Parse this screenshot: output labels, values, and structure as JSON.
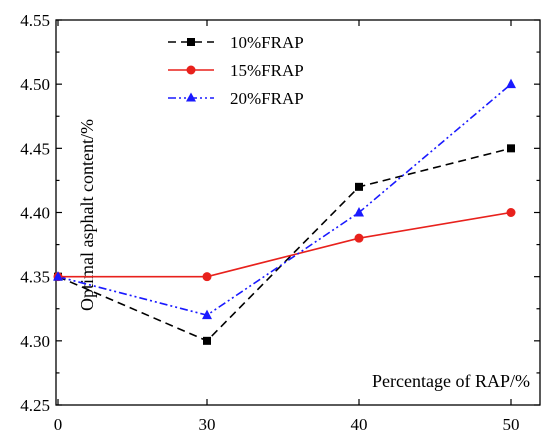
{
  "chart_data": {
    "type": "line",
    "title": "",
    "xlabel": "Percentage of RAP/%",
    "ylabel": "Optimal asphalt content/%",
    "x_ticks": [
      "0",
      "30",
      "40",
      "50"
    ],
    "y_ticks": [
      "4.25",
      "4.30",
      "4.35",
      "4.40",
      "4.45",
      "4.50",
      "4.55"
    ],
    "ylim": [
      4.25,
      4.55
    ],
    "grid": false,
    "legend_position": "top-left",
    "x": [
      0,
      30,
      40,
      50
    ],
    "series": [
      {
        "name": "10%FRAP",
        "values": [
          4.35,
          4.3,
          4.42,
          4.45
        ],
        "color": "#000000",
        "line_style": "dashed",
        "marker": "square"
      },
      {
        "name": "15%FRAP",
        "values": [
          4.35,
          4.35,
          4.38,
          4.4
        ],
        "color": "#e8211c",
        "line_style": "solid",
        "marker": "circle"
      },
      {
        "name": "20%FRAP",
        "values": [
          4.35,
          4.32,
          4.4,
          4.5
        ],
        "color": "#1a1aff",
        "line_style": "dash-dot-dot",
        "marker": "triangle"
      }
    ]
  }
}
